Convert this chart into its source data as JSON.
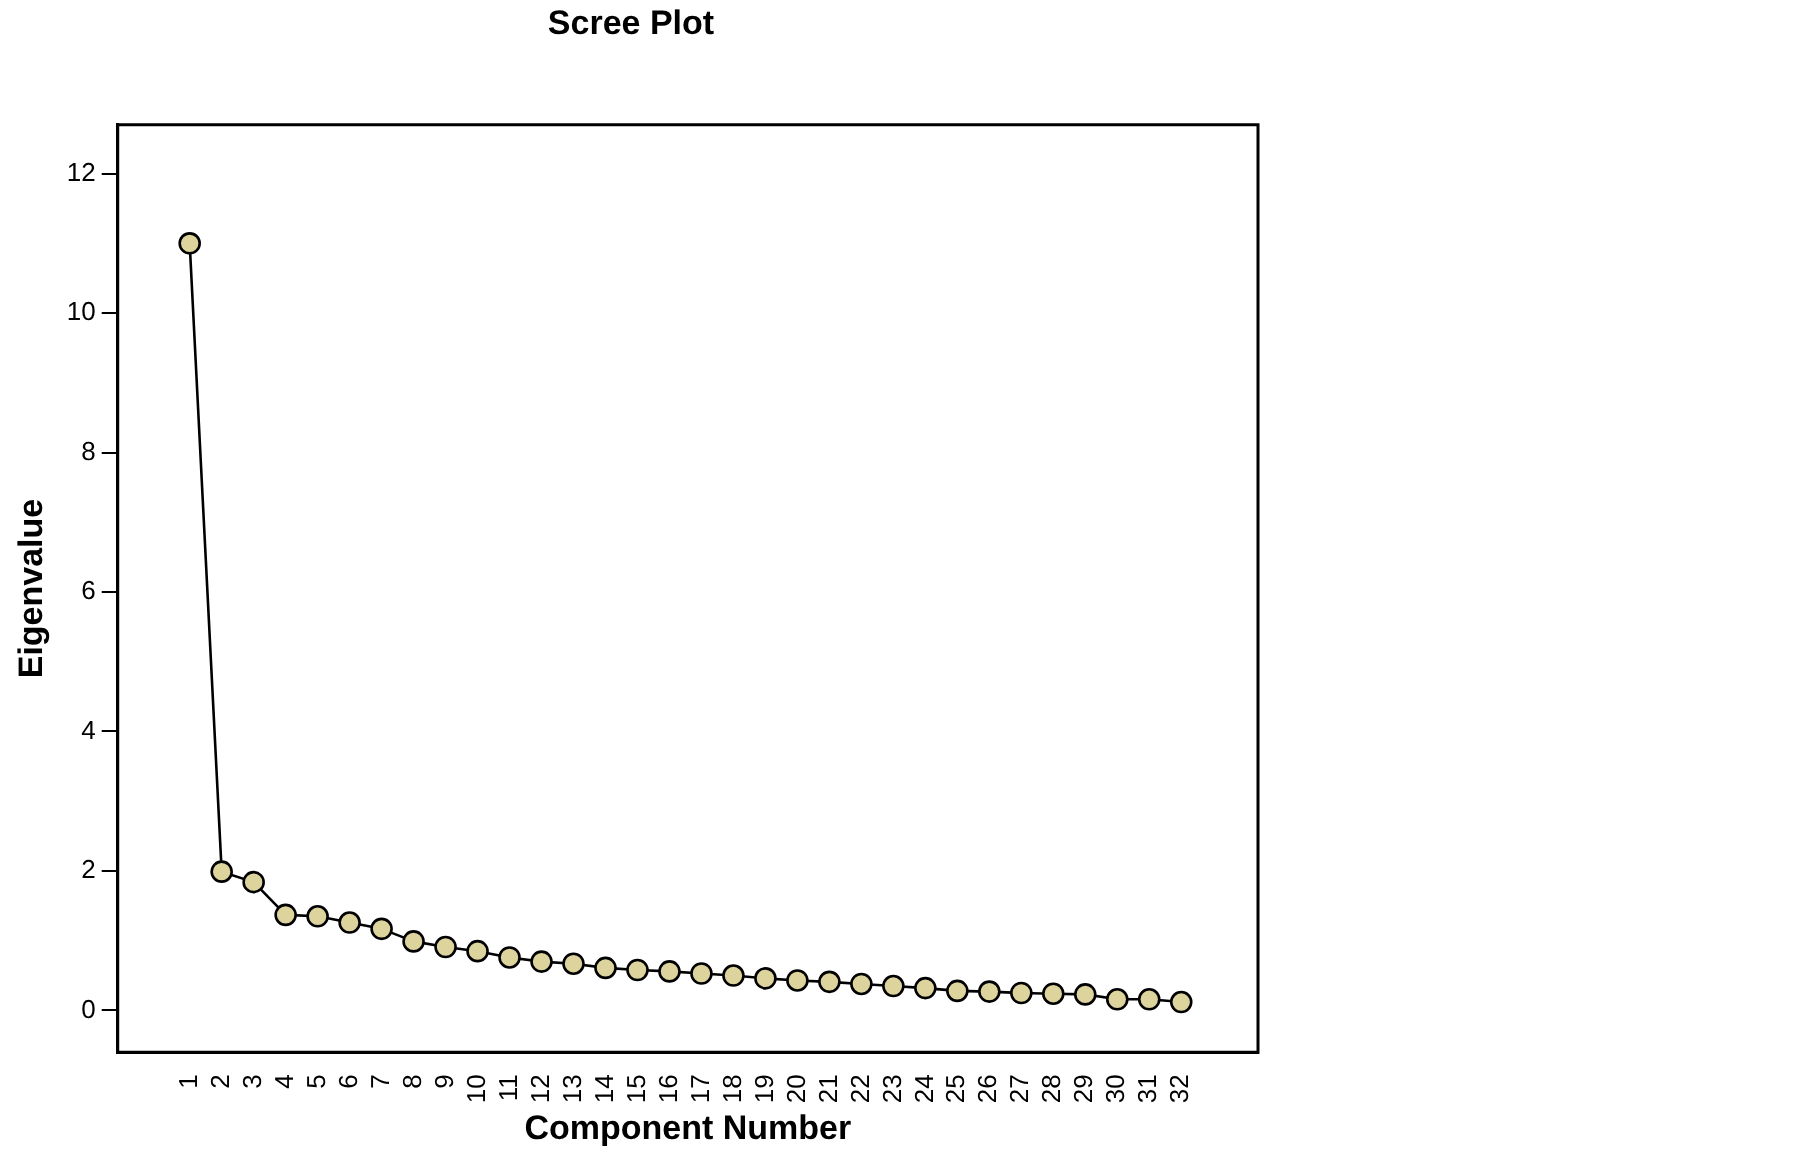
{
  "chart_data": {
    "type": "line",
    "title": "Scree Plot",
    "xlabel": "Component Number",
    "ylabel": "Eigenvalue",
    "categories": [
      "1",
      "2",
      "3",
      "4",
      "5",
      "6",
      "7",
      "8",
      "9",
      "10",
      "11",
      "12",
      "13",
      "14",
      "15",
      "16",
      "17",
      "18",
      "19",
      "20",
      "21",
      "22",
      "23",
      "24",
      "25",
      "26",
      "27",
      "28",
      "29",
      "30",
      "31",
      "32"
    ],
    "series": [
      {
        "color": "#ddd49d",
        "values": [
          11.0,
          1.99,
          1.84,
          1.37,
          1.35,
          1.26,
          1.17,
          0.99,
          0.91,
          0.85,
          0.76,
          0.7,
          0.67,
          0.61,
          0.58,
          0.56,
          0.53,
          0.5,
          0.46,
          0.43,
          0.41,
          0.38,
          0.35,
          0.32,
          0.28,
          0.27,
          0.25,
          0.24,
          0.23,
          0.16,
          0.16,
          0.12
        ]
      }
    ],
    "ylim": [
      -0.6,
      12.7
    ],
    "yticks": [
      0,
      2,
      4,
      6,
      8,
      10,
      12
    ],
    "grid": false,
    "legend": false,
    "marker": "circle",
    "line_style": "solid"
  }
}
